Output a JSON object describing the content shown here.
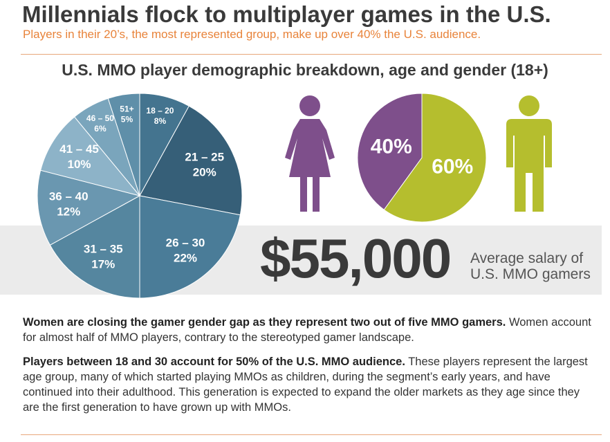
{
  "header": {
    "title": "Millennials flock to multiplayer games in the U.S.",
    "subtitle": "Players in their 20’s, the most represented group, make up over 40% the U.S. audience."
  },
  "chart_data": [
    {
      "type": "pie",
      "title": "U.S. MMO player demographic breakdown, age and gender (18+)",
      "categories": [
        "18 – 20",
        "21 – 25",
        "26 – 30",
        "31 – 35",
        "36 – 40",
        "41 – 45",
        "46 – 50",
        "51+"
      ],
      "values": [
        8,
        20,
        22,
        17,
        12,
        10,
        6,
        5
      ],
      "value_labels": [
        "8%",
        "20%",
        "22%",
        "17%",
        "12%",
        "10%",
        "6%",
        "5%"
      ],
      "colors": [
        "#44748f",
        "#365f78",
        "#4a7c98",
        "#55869f",
        "#6a97b0",
        "#8db3c8",
        "#7aa5bc",
        "#5f8fa9"
      ]
    },
    {
      "type": "pie",
      "categories": [
        null,
        null
      ],
      "values": [
        40,
        60
      ],
      "value_labels": [
        "40%",
        "60%"
      ],
      "colors": [
        "#7e4f8b",
        "#b5be2e"
      ]
    }
  ],
  "stat": {
    "value": "$55,000",
    "label": "Average salary of U.S. MMO gamers"
  },
  "paragraphs": [
    {
      "lead": "Women are closing the gamer gender gap as they represent two out of five MMO gamers.",
      "text": " Women account for almost half of MMO players, contrary to the stereotyped gamer landscape."
    },
    {
      "lead": "Players between 18 and 30 account for 50% of the U.S. MMO audience.",
      "text": " These players represent the largest age group, many of which started playing MMOs as children, during the segment’s early years, and have continued into their adulthood. This generation is expected to expand the older markets as they age since they are the first generation to have grown up with MMOs."
    }
  ]
}
